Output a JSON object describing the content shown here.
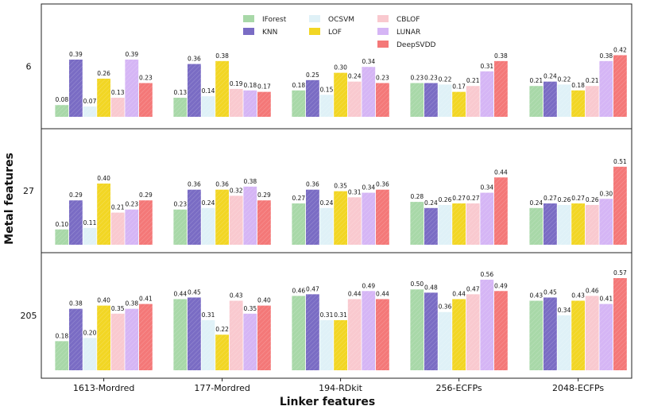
{
  "chart_data": {
    "type": "bar",
    "xlabel": "Linker features",
    "ylabel": "Metal features",
    "categories": [
      "1613-Mordred",
      "177-Mordred",
      "194-RDkit",
      "256-ECFPs",
      "2048-ECFPs"
    ],
    "legend": [
      {
        "name": "IForest",
        "color": "#a8d8a8"
      },
      {
        "name": "KNN",
        "color": "#7a6cc4"
      },
      {
        "name": "OCSVM",
        "color": "#dff1f7"
      },
      {
        "name": "LOF",
        "color": "#f2d624"
      },
      {
        "name": "CBLOF",
        "color": "#f9c9cf"
      },
      {
        "name": "LUNAR",
        "color": "#d5b5f5"
      },
      {
        "name": "DeepSVDD",
        "color": "#f47878"
      }
    ],
    "ylim": [
      0,
      0.48
    ],
    "panels": [
      {
        "label": "6",
        "values": [
          [
            0.08,
            0.39,
            0.07,
            0.26,
            0.13,
            0.39,
            0.23
          ],
          [
            0.13,
            0.36,
            0.14,
            0.38,
            0.19,
            0.18,
            0.17
          ],
          [
            0.18,
            0.25,
            0.15,
            0.3,
            0.24,
            0.34,
            0.23
          ],
          [
            0.23,
            0.23,
            0.22,
            0.17,
            0.21,
            0.31,
            0.38
          ],
          [
            0.21,
            0.24,
            0.22,
            0.18,
            0.21,
            0.38,
            0.42
          ]
        ],
        "labels": [
          [
            "0.08",
            "0.39",
            "0.07",
            "0.26",
            "0.13",
            "0.39",
            "0.23"
          ],
          [
            "0.13",
            "0.36",
            "0.14",
            "0.38",
            "0.19",
            "0.18",
            "0.17"
          ],
          [
            "0.18",
            "0.25",
            "0.15",
            "0.30",
            "0.24",
            "0.34",
            "0.23"
          ],
          [
            "0.23",
            "0.23",
            "0.22",
            "0.17",
            "0.21",
            "0.31",
            "0.38"
          ],
          [
            "0.21",
            "0.24",
            "0.22",
            "0.18",
            "0.21",
            "0.38",
            "0.42"
          ]
        ]
      },
      {
        "label": "27",
        "values": [
          [
            0.1,
            0.29,
            0.11,
            0.4,
            0.21,
            0.23,
            0.29
          ],
          [
            0.23,
            0.36,
            0.24,
            0.36,
            0.32,
            0.38,
            0.29
          ],
          [
            0.27,
            0.36,
            0.24,
            0.35,
            0.31,
            0.34,
            0.36
          ],
          [
            0.28,
            0.24,
            0.26,
            0.27,
            0.27,
            0.34,
            0.44
          ],
          [
            0.24,
            0.27,
            0.26,
            0.27,
            0.26,
            0.3,
            0.51
          ]
        ],
        "labels": [
          [
            "0.10",
            "0.29",
            "0.11",
            "0.40",
            "0.21",
            "0.23",
            "0.29"
          ],
          [
            "0.23",
            "0.36",
            "0.24",
            "0.36",
            "0.32",
            "0.38",
            "0.29"
          ],
          [
            "0.27",
            "0.36",
            "0.24",
            "0.35",
            "0.31",
            "0.34",
            "0.36"
          ],
          [
            "0.28",
            "0.24",
            "0.26",
            "0.27",
            "0.27",
            "0.34",
            "0.44"
          ],
          [
            "0.24",
            "0.27",
            "0.26",
            "0.27",
            "0.26",
            "0.30",
            "0.51"
          ]
        ]
      },
      {
        "label": "205",
        "values": [
          [
            0.18,
            0.38,
            0.2,
            0.4,
            0.35,
            0.38,
            0.41
          ],
          [
            0.44,
            0.45,
            0.31,
            0.22,
            0.43,
            0.35,
            0.4
          ],
          [
            0.46,
            0.47,
            0.31,
            0.31,
            0.44,
            0.49,
            0.44
          ],
          [
            0.5,
            0.48,
            0.36,
            0.44,
            0.47,
            0.56,
            0.49
          ],
          [
            0.43,
            0.45,
            0.34,
            0.43,
            0.46,
            0.41,
            0.57
          ]
        ],
        "labels": [
          [
            "0.18",
            "0.38",
            "0.20",
            "0.40",
            "0.35",
            "0.38",
            "0.41"
          ],
          [
            "0.44",
            "0.45",
            "0.31",
            "0.22",
            "0.43",
            "0.35",
            "0.40"
          ],
          [
            "0.46",
            "0.47",
            "0.31",
            "0.31",
            "0.44",
            "0.49",
            "0.44"
          ],
          [
            "0.50",
            "0.48",
            "0.36",
            "0.44",
            "0.47",
            "0.56",
            "0.49"
          ],
          [
            "0.43",
            "0.45",
            "0.34",
            "0.43",
            "0.46",
            "0.41",
            "0.57"
          ]
        ]
      }
    ]
  }
}
